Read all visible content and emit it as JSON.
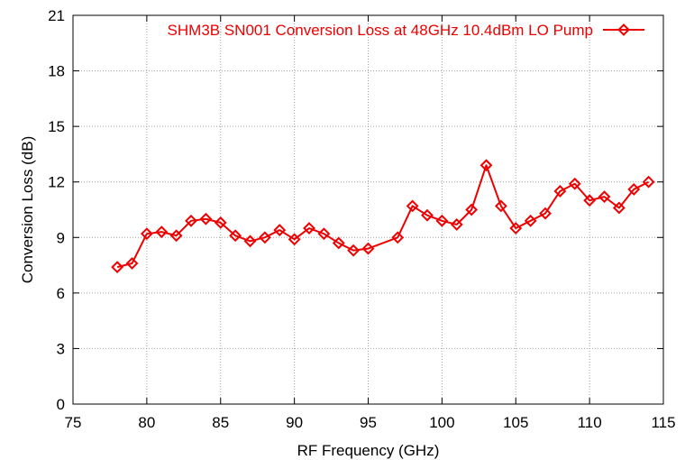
{
  "chart_data": {
    "type": "line",
    "xlabel": "RF Frequency (GHz)",
    "ylabel": "Conversion Loss (dB)",
    "xlim": [
      75,
      115
    ],
    "ylim": [
      0,
      21
    ],
    "xticks": [
      75,
      80,
      85,
      90,
      95,
      100,
      105,
      110,
      115
    ],
    "yticks": [
      0,
      3,
      6,
      9,
      12,
      15,
      18,
      21
    ],
    "grid": true,
    "legend_position": "top-right",
    "series": [
      {
        "name": "SHM3B SN001 Conversion Loss at 48GHz 10.4dBm LO Pump",
        "color": "#ee0000",
        "marker": "diamond",
        "x": [
          78,
          79,
          80,
          81,
          82,
          83,
          84,
          85,
          86,
          87,
          88,
          89,
          90,
          91,
          92,
          93,
          94,
          95,
          97,
          98,
          99,
          100,
          101,
          102,
          103,
          104,
          105,
          106,
          107,
          108,
          109,
          110,
          111,
          112,
          113,
          114
        ],
        "y": [
          7.4,
          7.6,
          9.2,
          9.3,
          9.1,
          9.9,
          10.0,
          9.8,
          9.1,
          8.8,
          9.0,
          9.4,
          8.9,
          9.5,
          9.2,
          8.7,
          8.3,
          8.4,
          9.0,
          10.7,
          10.2,
          9.9,
          9.7,
          10.5,
          12.9,
          10.7,
          9.5,
          9.9,
          10.3,
          11.5,
          11.9,
          11.0,
          11.2,
          10.6,
          11.6,
          12.0
        ]
      }
    ]
  }
}
